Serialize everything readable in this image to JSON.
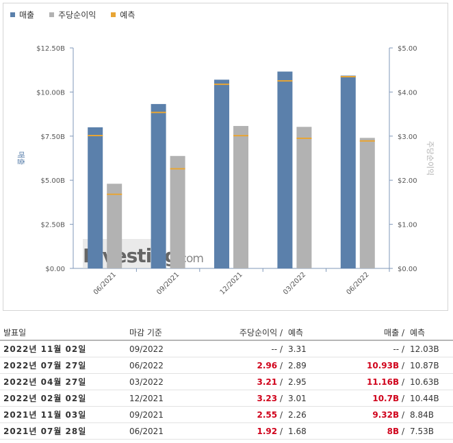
{
  "legend": [
    {
      "label": "매출",
      "color": "#5b80ab"
    },
    {
      "label": "주당순이익",
      "color": "#b2b2b2"
    },
    {
      "label": "예측",
      "color": "#e8a534"
    }
  ],
  "watermark": {
    "brand": "Investing",
    "suffix": ".com"
  },
  "chart_data": {
    "type": "bar",
    "categories": [
      "06/2021",
      "09/2021",
      "12/2021",
      "03/2022",
      "06/2022"
    ],
    "y_left": {
      "label": "매출",
      "ticks": [
        "$0.00",
        "$2.50B",
        "$5.00B",
        "$7.50B",
        "$10.00B",
        "$12.50B"
      ],
      "ylim": [
        0,
        12.5
      ],
      "unit": "B"
    },
    "y_right": {
      "label": "주당순이익",
      "ticks": [
        "$0.00",
        "$1.00",
        "$2.00",
        "$3.00",
        "$4.00",
        "$5.00"
      ],
      "ylim": [
        0,
        5
      ]
    },
    "series": [
      {
        "name": "매출",
        "axis": "left",
        "values": [
          8.0,
          9.32,
          10.7,
          11.16,
          10.93
        ],
        "forecast": [
          7.53,
          8.84,
          10.44,
          10.63,
          10.87
        ]
      },
      {
        "name": "주당순이익",
        "axis": "right",
        "values": [
          1.92,
          2.55,
          3.23,
          3.21,
          2.96
        ],
        "forecast": [
          1.68,
          2.26,
          3.01,
          2.95,
          2.89
        ]
      }
    ],
    "grid": false,
    "legend_position": "top-left"
  },
  "table": {
    "headers": {
      "date": "발표일",
      "period": "마감 기준",
      "eps": "주당순이익",
      "eps_forecast": "예측",
      "revenue": "매출",
      "revenue_forecast": "예측",
      "slash": "/"
    },
    "rows": [
      {
        "date": "2022년 11월 02일",
        "period": "09/2022",
        "eps": "--",
        "eps_forecast": "3.31",
        "revenue": "--",
        "revenue_forecast": "12.03B",
        "highlight": false
      },
      {
        "date": "2022년 07월 27일",
        "period": "06/2022",
        "eps": "2.96",
        "eps_forecast": "2.89",
        "revenue": "10.93B",
        "revenue_forecast": "10.87B",
        "highlight": true
      },
      {
        "date": "2022년 04월 27일",
        "period": "03/2022",
        "eps": "3.21",
        "eps_forecast": "2.95",
        "revenue": "11.16B",
        "revenue_forecast": "10.63B",
        "highlight": true
      },
      {
        "date": "2022년 02월 02일",
        "period": "12/2021",
        "eps": "3.23",
        "eps_forecast": "3.01",
        "revenue": "10.7B",
        "revenue_forecast": "10.44B",
        "highlight": true
      },
      {
        "date": "2021년 11월 03일",
        "period": "09/2021",
        "eps": "2.55",
        "eps_forecast": "2.26",
        "revenue": "9.32B",
        "revenue_forecast": "8.84B",
        "highlight": true
      },
      {
        "date": "2021년 07월 28일",
        "period": "06/2021",
        "eps": "1.92",
        "eps_forecast": "1.68",
        "revenue": "8B",
        "revenue_forecast": "7.53B",
        "highlight": true
      }
    ]
  }
}
